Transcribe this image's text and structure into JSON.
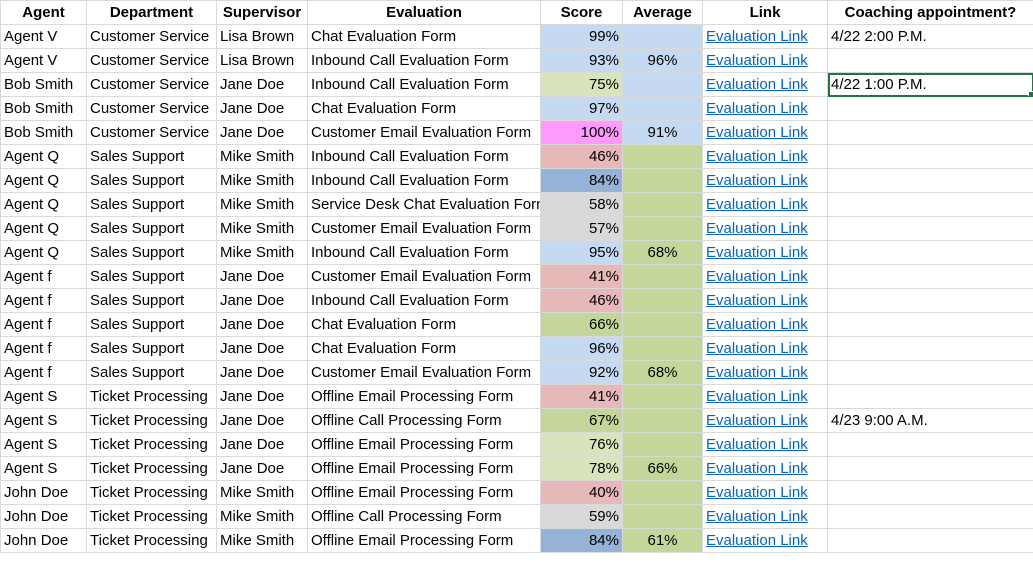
{
  "headers": [
    "Agent",
    "Department",
    "Supervisor",
    "Evaluation",
    "Score",
    "Average",
    "Link",
    "Coaching appointment?"
  ],
  "rows": [
    {
      "agent": "Agent V",
      "dept": "Customer Service",
      "sup": "Lisa Brown",
      "eval": "Chat Evaluation Form",
      "score": "99%",
      "avg": "",
      "link": "Evaluation Link",
      "coach": "4/22 2:00 P.M.",
      "score_color": "#c5d9f1",
      "avg_color": "#c5d9f1"
    },
    {
      "agent": "Agent V",
      "dept": "Customer Service",
      "sup": "Lisa Brown",
      "eval": "Inbound Call Evaluation Form",
      "score": "93%",
      "avg": "96%",
      "link": "Evaluation Link",
      "coach": "",
      "score_color": "#c5d9f1",
      "avg_color": "#c5d9f1"
    },
    {
      "agent": "Bob Smith",
      "dept": "Customer Service",
      "sup": "Jane Doe",
      "eval": "Inbound Call Evaluation Form",
      "score": "75%",
      "avg": "",
      "link": "Evaluation Link",
      "coach": "4/22 1:00 P.M.",
      "score_color": "#d8e4bc",
      "avg_color": "#c5d9f1"
    },
    {
      "agent": "Bob Smith",
      "dept": "Customer Service",
      "sup": "Jane Doe",
      "eval": "Chat Evaluation Form",
      "score": "97%",
      "avg": "",
      "link": "Evaluation Link",
      "coach": "",
      "score_color": "#c5d9f1",
      "avg_color": "#c5d9f1"
    },
    {
      "agent": "Bob Smith",
      "dept": "Customer Service",
      "sup": "Jane Doe",
      "eval": "Customer Email Evaluation Form",
      "score": "100%",
      "avg": "91%",
      "link": "Evaluation Link",
      "coach": "",
      "score_color": "#ff99ff",
      "avg_color": "#c5d9f1"
    },
    {
      "agent": "Agent Q",
      "dept": "Sales Support",
      "sup": "Mike Smith",
      "eval": "Inbound Call Evaluation Form",
      "score": "46%",
      "avg": "",
      "link": "Evaluation Link",
      "coach": "",
      "score_color": "#e6b8b7",
      "avg_color": "#c4d79b"
    },
    {
      "agent": "Agent Q",
      "dept": "Sales Support",
      "sup": "Mike Smith",
      "eval": "Inbound Call Evaluation Form",
      "score": "84%",
      "avg": "",
      "link": "Evaluation Link",
      "coach": "",
      "score_color": "#95b3d7",
      "avg_color": "#c4d79b"
    },
    {
      "agent": "Agent Q",
      "dept": "Sales Support",
      "sup": "Mike Smith",
      "eval": "Service Desk Chat Evaluation Form",
      "score": "58%",
      "avg": "",
      "link": "Evaluation Link",
      "coach": "",
      "score_color": "#d9d9d9",
      "avg_color": "#c4d79b"
    },
    {
      "agent": "Agent Q",
      "dept": "Sales Support",
      "sup": "Mike Smith",
      "eval": "Customer Email Evaluation Form",
      "score": "57%",
      "avg": "",
      "link": "Evaluation Link",
      "coach": "",
      "score_color": "#d9d9d9",
      "avg_color": "#c4d79b"
    },
    {
      "agent": "Agent Q",
      "dept": "Sales Support",
      "sup": "Mike Smith",
      "eval": "Inbound Call Evaluation Form",
      "score": "95%",
      "avg": "68%",
      "link": "Evaluation Link",
      "coach": "",
      "score_color": "#c5d9f1",
      "avg_color": "#c4d79b"
    },
    {
      "agent": "Agent f",
      "dept": "Sales Support",
      "sup": "Jane Doe",
      "eval": "Customer Email Evaluation Form",
      "score": "41%",
      "avg": "",
      "link": "Evaluation Link",
      "coach": "",
      "score_color": "#e6b8b7",
      "avg_color": "#c4d79b"
    },
    {
      "agent": "Agent f",
      "dept": "Sales Support",
      "sup": "Jane Doe",
      "eval": "Inbound Call Evaluation Form",
      "score": "46%",
      "avg": "",
      "link": "Evaluation Link",
      "coach": "",
      "score_color": "#e6b8b7",
      "avg_color": "#c4d79b"
    },
    {
      "agent": "Agent f",
      "dept": "Sales Support",
      "sup": "Jane Doe",
      "eval": "Chat Evaluation Form",
      "score": "66%",
      "avg": "",
      "link": "Evaluation Link",
      "coach": "",
      "score_color": "#c4d79b",
      "avg_color": "#c4d79b"
    },
    {
      "agent": "Agent f",
      "dept": "Sales Support",
      "sup": "Jane Doe",
      "eval": "Chat Evaluation Form",
      "score": "96%",
      "avg": "",
      "link": "Evaluation Link",
      "coach": "",
      "score_color": "#c5d9f1",
      "avg_color": "#c4d79b"
    },
    {
      "agent": "Agent f",
      "dept": "Sales Support",
      "sup": "Jane Doe",
      "eval": "Customer Email Evaluation Form",
      "score": "92%",
      "avg": "68%",
      "link": "Evaluation Link",
      "coach": "",
      "score_color": "#c5d9f1",
      "avg_color": "#c4d79b"
    },
    {
      "agent": "Agent S",
      "dept": "Ticket Processing",
      "sup": "Jane Doe",
      "eval": "Offline Email  Processing Form",
      "score": "41%",
      "avg": "",
      "link": "Evaluation Link",
      "coach": "",
      "score_color": "#e6b8b7",
      "avg_color": "#c4d79b"
    },
    {
      "agent": "Agent S",
      "dept": "Ticket Processing",
      "sup": "Jane Doe",
      "eval": "Offline Call  Processing Form",
      "score": "67%",
      "avg": "",
      "link": "Evaluation Link",
      "coach": "4/23 9:00 A.M.",
      "score_color": "#c4d79b",
      "avg_color": "#c4d79b"
    },
    {
      "agent": "Agent S",
      "dept": "Ticket Processing",
      "sup": "Jane Doe",
      "eval": "Offline Email  Processing Form",
      "score": "76%",
      "avg": "",
      "link": "Evaluation Link",
      "coach": "",
      "score_color": "#d8e4bc",
      "avg_color": "#c4d79b"
    },
    {
      "agent": "Agent S",
      "dept": "Ticket Processing",
      "sup": "Jane Doe",
      "eval": "Offline Email  Processing Form",
      "score": "78%",
      "avg": "66%",
      "link": "Evaluation Link",
      "coach": "",
      "score_color": "#d8e4bc",
      "avg_color": "#c4d79b"
    },
    {
      "agent": "John Doe",
      "dept": "Ticket Processing",
      "sup": "Mike Smith",
      "eval": "Offline Email  Processing Form",
      "score": "40%",
      "avg": "",
      "link": "Evaluation Link",
      "coach": "",
      "score_color": "#e6b8b7",
      "avg_color": "#c4d79b"
    },
    {
      "agent": "John Doe",
      "dept": "Ticket Processing",
      "sup": "Mike Smith",
      "eval": "Offline Call  Processing Form",
      "score": "59%",
      "avg": "",
      "link": "Evaluation Link",
      "coach": "",
      "score_color": "#d9d9d9",
      "avg_color": "#c4d79b"
    },
    {
      "agent": "John Doe",
      "dept": "Ticket Processing",
      "sup": "Mike Smith",
      "eval": "Offline Email  Processing Form",
      "score": "84%",
      "avg": "61%",
      "link": "Evaluation Link",
      "coach": "",
      "score_color": "#95b3d7",
      "avg_color": "#c4d79b"
    }
  ],
  "selected_row": 2,
  "colors": {
    "link": "#0563c1",
    "selection_border": "#217346",
    "gridline": "#d9d9d9"
  }
}
